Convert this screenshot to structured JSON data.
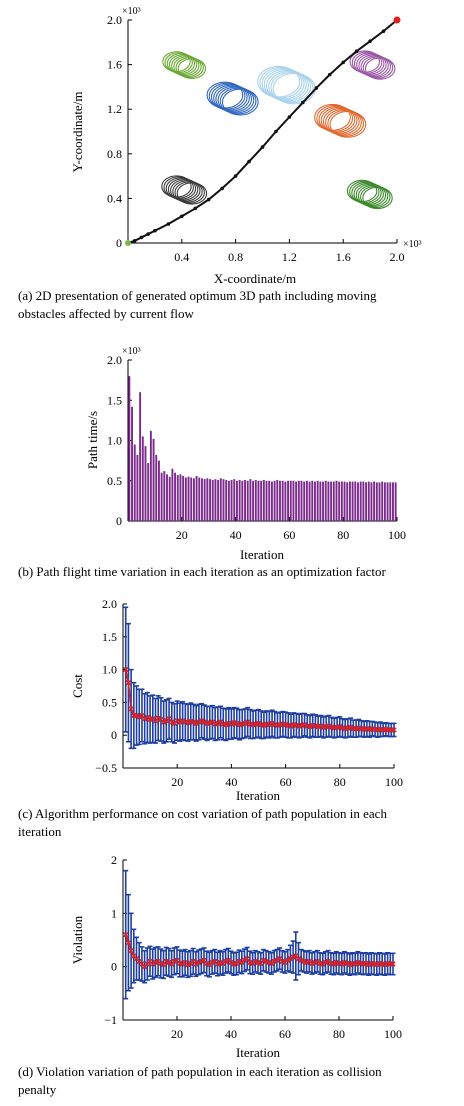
{
  "chart_data": [
    {
      "type": "line",
      "xlabel": "X-coordinate/m",
      "ylabel": "Y-coordinate/m",
      "x_multiplier": "×10³",
      "y_multiplier": "×10³",
      "xlim": [
        0,
        2.0
      ],
      "ylim": [
        0,
        2.0
      ],
      "xticks": [
        "0.4",
        "0.8",
        "1.2",
        "1.6",
        "2.0"
      ],
      "yticks": [
        "0",
        "0.4",
        "0.8",
        "1.2",
        "1.6",
        "2.0"
      ],
      "caption": "(a) 2D presentation of generated optimum 3D path including moving obstacles affected by current flow",
      "caption_lines": [
        "(a) 2D presentation of generated optimum 3D path including moving",
        "obstacles affected by current flow"
      ],
      "path": {
        "x": [
          0,
          0.05,
          0.1,
          0.15,
          0.2,
          0.3,
          0.4,
          0.5,
          0.6,
          0.7,
          0.8,
          0.9,
          1.0,
          1.1,
          1.2,
          1.3,
          1.4,
          1.5,
          1.6,
          1.7,
          1.8,
          1.9,
          2.0
        ],
        "y": [
          0,
          0.02,
          0.05,
          0.08,
          0.11,
          0.17,
          0.24,
          0.31,
          0.39,
          0.49,
          0.6,
          0.73,
          0.86,
          1.0,
          1.13,
          1.26,
          1.39,
          1.51,
          1.62,
          1.72,
          1.81,
          1.9,
          2.0
        ],
        "color": "#111111"
      },
      "start_color": "#7ab648",
      "end_color": "#e02020",
      "obstacles": [
        {
          "cx": 0.42,
          "cy": 1.6,
          "r": 0.13,
          "color": "#6aa832"
        },
        {
          "cx": 0.78,
          "cy": 1.3,
          "r": 0.17,
          "color": "#2f66c0"
        },
        {
          "cx": 1.18,
          "cy": 1.42,
          "r": 0.2,
          "color": "#a9d3ec"
        },
        {
          "cx": 1.58,
          "cy": 1.1,
          "r": 0.17,
          "color": "#e0692f"
        },
        {
          "cx": 1.82,
          "cy": 1.6,
          "r": 0.14,
          "color": "#9c5aa6"
        },
        {
          "cx": 0.42,
          "cy": 0.48,
          "r": 0.14,
          "color": "#3a3a3a"
        },
        {
          "cx": 1.8,
          "cy": 0.44,
          "r": 0.14,
          "color": "#3c8a2c"
        }
      ]
    },
    {
      "type": "bar",
      "xlabel": "Iteration",
      "ylabel": "Path time/s",
      "y_multiplier": "×10³",
      "xlim": [
        0,
        100
      ],
      "ylim": [
        0,
        2.0
      ],
      "xticks": [
        "20",
        "40",
        "60",
        "80",
        "100"
      ],
      "yticks": [
        "0",
        "0.5",
        "1.0",
        "1.5",
        "2.0"
      ],
      "color": "#7a2a8a",
      "caption": "(b) Path flight time variation in each iteration as an optimization factor",
      "values": [
        1.8,
        1.42,
        0.95,
        0.82,
        1.6,
        1.05,
        0.93,
        0.72,
        1.12,
        1.02,
        0.82,
        0.75,
        0.6,
        0.62,
        0.58,
        0.55,
        0.65,
        0.6,
        0.57,
        0.58,
        0.56,
        0.54,
        0.55,
        0.54,
        0.53,
        0.56,
        0.54,
        0.53,
        0.52,
        0.53,
        0.52,
        0.51,
        0.52,
        0.51,
        0.53,
        0.52,
        0.51,
        0.5,
        0.51,
        0.52,
        0.5,
        0.51,
        0.5,
        0.51,
        0.5,
        0.52,
        0.5,
        0.51,
        0.5,
        0.5,
        0.51,
        0.5,
        0.5,
        0.49,
        0.5,
        0.51,
        0.5,
        0.5,
        0.49,
        0.5,
        0.5,
        0.5,
        0.49,
        0.5,
        0.5,
        0.49,
        0.5,
        0.49,
        0.5,
        0.49,
        0.5,
        0.49,
        0.49,
        0.5,
        0.49,
        0.49,
        0.49,
        0.5,
        0.49,
        0.49,
        0.49,
        0.48,
        0.49,
        0.49,
        0.49,
        0.48,
        0.49,
        0.49,
        0.48,
        0.49,
        0.48,
        0.49,
        0.48,
        0.48,
        0.49,
        0.48,
        0.48,
        0.48,
        0.48,
        0.48
      ]
    },
    {
      "type": "scatter",
      "xlabel": "Iteration",
      "ylabel": "Cost",
      "xlim": [
        0,
        100
      ],
      "ylim": [
        -0.5,
        2.0
      ],
      "xticks": [
        "20",
        "40",
        "60",
        "80",
        "100"
      ],
      "yticks": [
        "−0.5",
        "0",
        "0.5",
        "1.0",
        "1.5",
        "2.0"
      ],
      "error_color": "#1f3fa0",
      "marker_color": "#e02020",
      "caption": "(c) Algorithm performance on cost variation of path population in each iteration",
      "caption_lines": [
        "(c) Algorithm performance on cost variation of path population in each",
        "iteration"
      ],
      "mean": [
        1.0,
        0.8,
        0.4,
        0.3,
        0.3,
        0.28,
        0.3,
        0.25,
        0.27,
        0.24,
        0.25,
        0.22,
        0.26,
        0.24,
        0.2,
        0.22,
        0.25,
        0.2,
        0.18,
        0.22,
        0.2,
        0.22,
        0.2,
        0.19,
        0.21,
        0.2,
        0.18,
        0.2,
        0.22,
        0.2,
        0.18,
        0.19,
        0.2,
        0.17,
        0.18,
        0.2,
        0.17,
        0.16,
        0.18,
        0.17,
        0.19,
        0.18,
        0.16,
        0.17,
        0.18,
        0.2,
        0.17,
        0.16,
        0.17,
        0.18,
        0.16,
        0.15,
        0.17,
        0.16,
        0.18,
        0.16,
        0.15,
        0.16,
        0.17,
        0.16,
        0.15,
        0.14,
        0.16,
        0.15,
        0.14,
        0.15,
        0.16,
        0.14,
        0.13,
        0.15,
        0.14,
        0.13,
        0.14,
        0.12,
        0.13,
        0.14,
        0.12,
        0.11,
        0.12,
        0.13,
        0.11,
        0.1,
        0.11,
        0.12,
        0.1,
        0.1,
        0.11,
        0.1,
        0.09,
        0.1,
        0.09,
        0.1,
        0.09,
        0.08,
        0.09,
        0.08,
        0.09,
        0.08,
        0.08,
        0.08
      ],
      "err": [
        0.95,
        0.9,
        0.6,
        0.5,
        0.45,
        0.42,
        0.4,
        0.38,
        0.38,
        0.36,
        0.36,
        0.34,
        0.34,
        0.33,
        0.32,
        0.32,
        0.31,
        0.3,
        0.3,
        0.3,
        0.29,
        0.29,
        0.28,
        0.28,
        0.28,
        0.27,
        0.27,
        0.27,
        0.26,
        0.26,
        0.26,
        0.25,
        0.25,
        0.25,
        0.25,
        0.24,
        0.24,
        0.24,
        0.24,
        0.23,
        0.23,
        0.23,
        0.23,
        0.22,
        0.22,
        0.22,
        0.22,
        0.21,
        0.21,
        0.21,
        0.21,
        0.2,
        0.2,
        0.2,
        0.2,
        0.2,
        0.19,
        0.19,
        0.19,
        0.19,
        0.19,
        0.18,
        0.18,
        0.18,
        0.18,
        0.18,
        0.17,
        0.17,
        0.17,
        0.17,
        0.17,
        0.16,
        0.16,
        0.16,
        0.16,
        0.16,
        0.15,
        0.15,
        0.15,
        0.15,
        0.14,
        0.14,
        0.14,
        0.14,
        0.13,
        0.13,
        0.13,
        0.12,
        0.12,
        0.12,
        0.12,
        0.11,
        0.11,
        0.11,
        0.11,
        0.1,
        0.1,
        0.1,
        0.1,
        0.1
      ]
    },
    {
      "type": "scatter",
      "xlabel": "Iteration",
      "ylabel": "Violation",
      "xlim": [
        0,
        100
      ],
      "ylim": [
        -1,
        2
      ],
      "xticks": [
        "20",
        "40",
        "60",
        "80",
        "100"
      ],
      "yticks": [
        "−1",
        "0",
        "1",
        "2"
      ],
      "error_color": "#1f3fa0",
      "marker_color": "#e02020",
      "caption": "(d) Violation variation of path population in each iteration as collision penalty",
      "caption_lines": [
        "(d) Violation variation of path population in each iteration as collision",
        "penalty"
      ],
      "mean": [
        0.6,
        0.45,
        0.3,
        0.2,
        0.15,
        0.1,
        0.05,
        0.0,
        0.05,
        0.1,
        0.05,
        0.08,
        0.1,
        0.06,
        0.04,
        0.1,
        0.08,
        0.05,
        0.1,
        0.12,
        0.06,
        0.05,
        0.08,
        0.04,
        0.06,
        0.1,
        0.05,
        0.08,
        0.1,
        0.12,
        0.06,
        0.04,
        0.08,
        0.1,
        0.05,
        0.08,
        0.06,
        0.1,
        0.12,
        0.08,
        0.05,
        0.06,
        0.1,
        0.08,
        0.12,
        0.15,
        0.08,
        0.06,
        0.1,
        0.08,
        0.06,
        0.12,
        0.1,
        0.08,
        0.06,
        0.1,
        0.12,
        0.15,
        0.1,
        0.08,
        0.12,
        0.15,
        0.18,
        0.2,
        0.15,
        0.12,
        0.1,
        0.08,
        0.1,
        0.06,
        0.08,
        0.1,
        0.06,
        0.05,
        0.08,
        0.1,
        0.06,
        0.05,
        0.08,
        0.06,
        0.05,
        0.08,
        0.06,
        0.04,
        0.06,
        0.05,
        0.08,
        0.06,
        0.05,
        0.06,
        0.04,
        0.06,
        0.05,
        0.04,
        0.06,
        0.05,
        0.04,
        0.06,
        0.05,
        0.05
      ],
      "err": [
        1.2,
        0.9,
        0.7,
        0.5,
        0.4,
        0.35,
        0.32,
        0.3,
        0.3,
        0.28,
        0.28,
        0.28,
        0.27,
        0.27,
        0.26,
        0.26,
        0.26,
        0.25,
        0.25,
        0.25,
        0.25,
        0.24,
        0.24,
        0.24,
        0.24,
        0.24,
        0.23,
        0.23,
        0.23,
        0.23,
        0.23,
        0.23,
        0.22,
        0.22,
        0.22,
        0.22,
        0.22,
        0.22,
        0.22,
        0.21,
        0.21,
        0.21,
        0.21,
        0.21,
        0.21,
        0.21,
        0.21,
        0.2,
        0.2,
        0.2,
        0.2,
        0.2,
        0.2,
        0.2,
        0.2,
        0.2,
        0.2,
        0.2,
        0.2,
        0.2,
        0.2,
        0.25,
        0.3,
        0.45,
        0.3,
        0.2,
        0.2,
        0.2,
        0.2,
        0.2,
        0.2,
        0.2,
        0.2,
        0.2,
        0.2,
        0.2,
        0.2,
        0.2,
        0.2,
        0.2,
        0.2,
        0.2,
        0.2,
        0.2,
        0.2,
        0.2,
        0.2,
        0.2,
        0.2,
        0.2,
        0.2,
        0.2,
        0.2,
        0.2,
        0.2,
        0.2,
        0.2,
        0.2,
        0.2,
        0.2
      ]
    }
  ]
}
